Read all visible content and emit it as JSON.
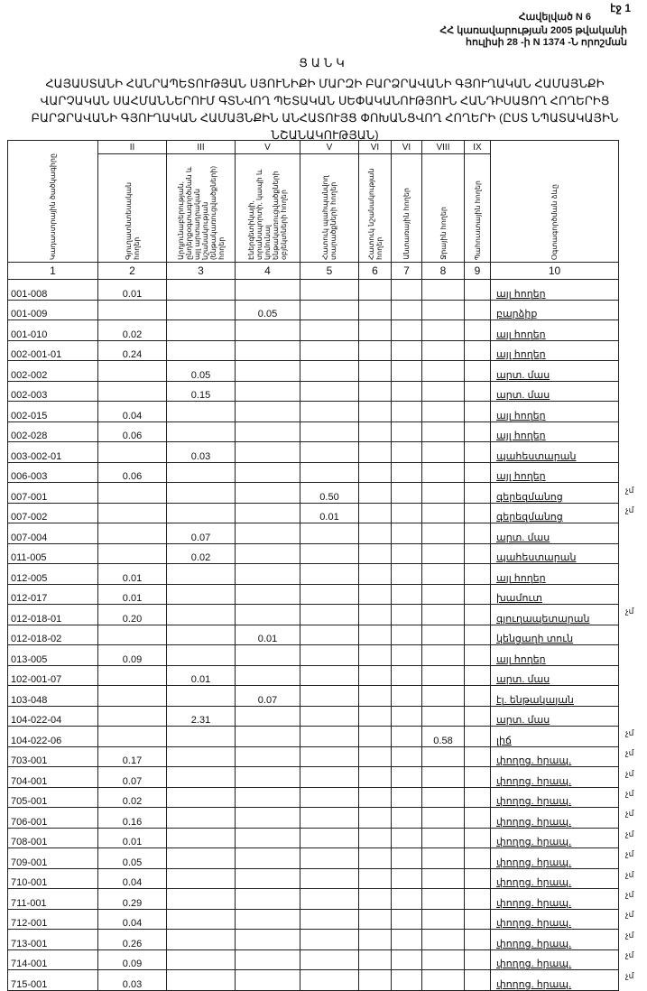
{
  "page_number": "էջ 1",
  "annex": "Հավելված N 6",
  "decree_line1": "ՀՀ կառավարության 2005 թվականի",
  "decree_line2": "հուլիսի 28 -ի N 1374 -Ն որոշման",
  "list_title": "ՑԱՆԿ",
  "main_title": "ՀԱՅԱՍՏԱՆԻ ՀԱՆՐԱՊԵՏՈՒԹՅԱՆ ՍՅՈՒՆԻՔԻ ՄԱՐԶԻ ԲԱՐՁՐԱՎԱՆԻ ԳՅՈՒՂԱԿԱՆ ՀԱՄԱՅՆՔԻ ՎԱՐՉԱԿԱՆ ՍԱՀՄԱՆՆԵՐՈՒՄ ԳՏՆՎՈՂ ՊԵՏԱԿԱՆ ՍԵՓԱԿԱՆՈՒԹՅՈՒՆ ՀԱՆԴԻՍԱՑՈՂ ՀՈՂԵՐԻՑ ԲԱՐՁՐԱՎԱՆԻ ԳՅՈՒՂԱԿԱՆ ՀԱՄԱՅՆՔԻՆ ԱՆՀԱՏՈՒՅՑ ՓՈԽԱՆՑՎՈՂ ՀՈՂԵՐԻ (ԸՍՏ ՆՊԱՏԱԿԱՅԻՆ ՆՇԱՆԱԿՈՒԹՅԱՆ)",
  "columns": [
    {
      "roman": "",
      "label": "Կադաստրային ծածկագիրը",
      "number": "1"
    },
    {
      "roman": "II",
      "label": "Գյուղատնտեսական հողեր",
      "number": "2"
    },
    {
      "roman": "III",
      "label": "Արդյունաբերության, ընդերքօգտագործման և այլ արտադրական նշանակության (ենթակառուցվածքների) հողեր",
      "number": "3"
    },
    {
      "roman": "V",
      "label": "Էներգետիկայի, տրանսպորտի, կապի և կոմունալ ենթակառուցվածքների օբյեկտների հողեր",
      "number": "4"
    },
    {
      "roman": "V",
      "label": "Հատուկ պահպանվող տարածքների հողեր",
      "number": "5"
    },
    {
      "roman": "VI",
      "label": "Հատուկ նշանակության հողեր",
      "number": "6"
    },
    {
      "roman": "VI",
      "label": "Անտառային հողեր",
      "number": "7"
    },
    {
      "roman": "VIII",
      "label": "Ջրային հողեր",
      "number": "8"
    },
    {
      "roman": "IX",
      "label": "Պահուստային հողեր",
      "number": "9"
    },
    {
      "roman": "",
      "label": "Օգտագործման ձևը",
      "number": "10"
    }
  ],
  "rows": [
    {
      "code": "001-008",
      "c2": "0.01",
      "c3": "",
      "c4": "",
      "c5": "",
      "c8": "",
      "use": "այլ հողեր",
      "note": ""
    },
    {
      "code": "001-009",
      "c2": "",
      "c3": "",
      "c4": "0.05",
      "c5": "",
      "c8": "",
      "use": "բարձիք",
      "note": ""
    },
    {
      "code": "001-010",
      "c2": "0.02",
      "c3": "",
      "c4": "",
      "c5": "",
      "c8": "",
      "use": "այլ հողեր",
      "note": ""
    },
    {
      "code": "002-001-01",
      "c2": "0.24",
      "c3": "",
      "c4": "",
      "c5": "",
      "c8": "",
      "use": "այլ հողեր",
      "note": ""
    },
    {
      "code": "002-002",
      "c2": "",
      "c3": "0.05",
      "c4": "",
      "c5": "",
      "c8": "",
      "use": "արտ. մաս",
      "note": ""
    },
    {
      "code": "002-003",
      "c2": "",
      "c3": "0.15",
      "c4": "",
      "c5": "",
      "c8": "",
      "use": "արտ. մաս",
      "note": ""
    },
    {
      "code": "002-015",
      "c2": "0.04",
      "c3": "",
      "c4": "",
      "c5": "",
      "c8": "",
      "use": "այլ հողեր",
      "note": ""
    },
    {
      "code": "002-028",
      "c2": "0.06",
      "c3": "",
      "c4": "",
      "c5": "",
      "c8": "",
      "use": "այլ հողեր",
      "note": ""
    },
    {
      "code": "003-002-01",
      "c2": "",
      "c3": "0.03",
      "c4": "",
      "c5": "",
      "c8": "",
      "use": "պահեստարան",
      "note": ""
    },
    {
      "code": "006-003",
      "c2": "0.06",
      "c3": "",
      "c4": "",
      "c5": "",
      "c8": "",
      "use": "այլ հողեր",
      "note": ""
    },
    {
      "code": "007-001",
      "c2": "",
      "c3": "",
      "c4": "",
      "c5": "0.50",
      "c8": "",
      "use": "գերեզմանոց",
      "note": "չմ"
    },
    {
      "code": "007-002",
      "c2": "",
      "c3": "",
      "c4": "",
      "c5": "0.01",
      "c8": "",
      "use": "գերեզմանոց",
      "note": "չմ"
    },
    {
      "code": "007-004",
      "c2": "",
      "c3": "0.07",
      "c4": "",
      "c5": "",
      "c8": "",
      "use": "արտ. մաս",
      "note": ""
    },
    {
      "code": "011-005",
      "c2": "",
      "c3": "0.02",
      "c4": "",
      "c5": "",
      "c8": "",
      "use": "պահեստարան",
      "note": ""
    },
    {
      "code": "012-005",
      "c2": "0.01",
      "c3": "",
      "c4": "",
      "c5": "",
      "c8": "",
      "use": "այլ հողեր",
      "note": ""
    },
    {
      "code": "012-017",
      "c2": "0.01",
      "c3": "",
      "c4": "",
      "c5": "",
      "c8": "",
      "use": "խամուտ",
      "note": ""
    },
    {
      "code": "012-018-01",
      "c2": "0.20",
      "c3": "",
      "c4": "",
      "c5": "",
      "c8": "",
      "use": "գյուղապետարան",
      "note": "չմ"
    },
    {
      "code": "012-018-02",
      "c2": "",
      "c3": "",
      "c4": "0.01",
      "c5": "",
      "c8": "",
      "use": "կենցաղի տուն",
      "note": ""
    },
    {
      "code": "013-005",
      "c2": "0.09",
      "c3": "",
      "c4": "",
      "c5": "",
      "c8": "",
      "use": "այլ հողեր",
      "note": ""
    },
    {
      "code": "102-001-07",
      "c2": "",
      "c3": "0.01",
      "c4": "",
      "c5": "",
      "c8": "",
      "use": "արտ. մաս",
      "note": ""
    },
    {
      "code": "103-048",
      "c2": "",
      "c3": "",
      "c4": "0.07",
      "c5": "",
      "c8": "",
      "use": "էլ. ենթակայան",
      "note": ""
    },
    {
      "code": "104-022-04",
      "c2": "",
      "c3": "2.31",
      "c4": "",
      "c5": "",
      "c8": "",
      "use": "արտ. մաս",
      "note": ""
    },
    {
      "code": "104-022-06",
      "c2": "",
      "c3": "",
      "c4": "",
      "c5": "",
      "c8": "0.58",
      "use": "լիճ",
      "note": "չմ"
    },
    {
      "code": "703-001",
      "c2": "0.17",
      "c3": "",
      "c4": "",
      "c5": "",
      "c8": "",
      "use": "փողոց. հրապ.",
      "note": "չմ"
    },
    {
      "code": "704-001",
      "c2": "0.07",
      "c3": "",
      "c4": "",
      "c5": "",
      "c8": "",
      "use": "փողոց. հրապ.",
      "note": "չմ"
    },
    {
      "code": "705-001",
      "c2": "0.02",
      "c3": "",
      "c4": "",
      "c5": "",
      "c8": "",
      "use": "փողոց. հրապ.",
      "note": "չմ"
    },
    {
      "code": "706-001",
      "c2": "0.16",
      "c3": "",
      "c4": "",
      "c5": "",
      "c8": "",
      "use": "փողոց. հրապ.",
      "note": "չմ"
    },
    {
      "code": "708-001",
      "c2": "0.01",
      "c3": "",
      "c4": "",
      "c5": "",
      "c8": "",
      "use": "փողոց. հրապ.",
      "note": "չմ"
    },
    {
      "code": "709-001",
      "c2": "0.05",
      "c3": "",
      "c4": "",
      "c5": "",
      "c8": "",
      "use": "փողոց. հրապ.",
      "note": "չմ"
    },
    {
      "code": "710-001",
      "c2": "0.04",
      "c3": "",
      "c4": "",
      "c5": "",
      "c8": "",
      "use": "փողոց. հրապ.",
      "note": "չմ"
    },
    {
      "code": "711-001",
      "c2": "0.29",
      "c3": "",
      "c4": "",
      "c5": "",
      "c8": "",
      "use": "փողոց. հրապ.",
      "note": "չմ"
    },
    {
      "code": "712-001",
      "c2": "0.04",
      "c3": "",
      "c4": "",
      "c5": "",
      "c8": "",
      "use": "փողոց. հրապ.",
      "note": "չմ"
    },
    {
      "code": "713-001",
      "c2": "0.26",
      "c3": "",
      "c4": "",
      "c5": "",
      "c8": "",
      "use": "փողոց. հրապ.",
      "note": "չմ"
    },
    {
      "code": "714-001",
      "c2": "0.09",
      "c3": "",
      "c4": "",
      "c5": "",
      "c8": "",
      "use": "փողոց. հրապ.",
      "note": "չմ"
    },
    {
      "code": "715-001",
      "c2": "0.03",
      "c3": "",
      "c4": "",
      "c5": "",
      "c8": "",
      "use": "փողոց. հրապ.",
      "note": "չմ"
    }
  ]
}
